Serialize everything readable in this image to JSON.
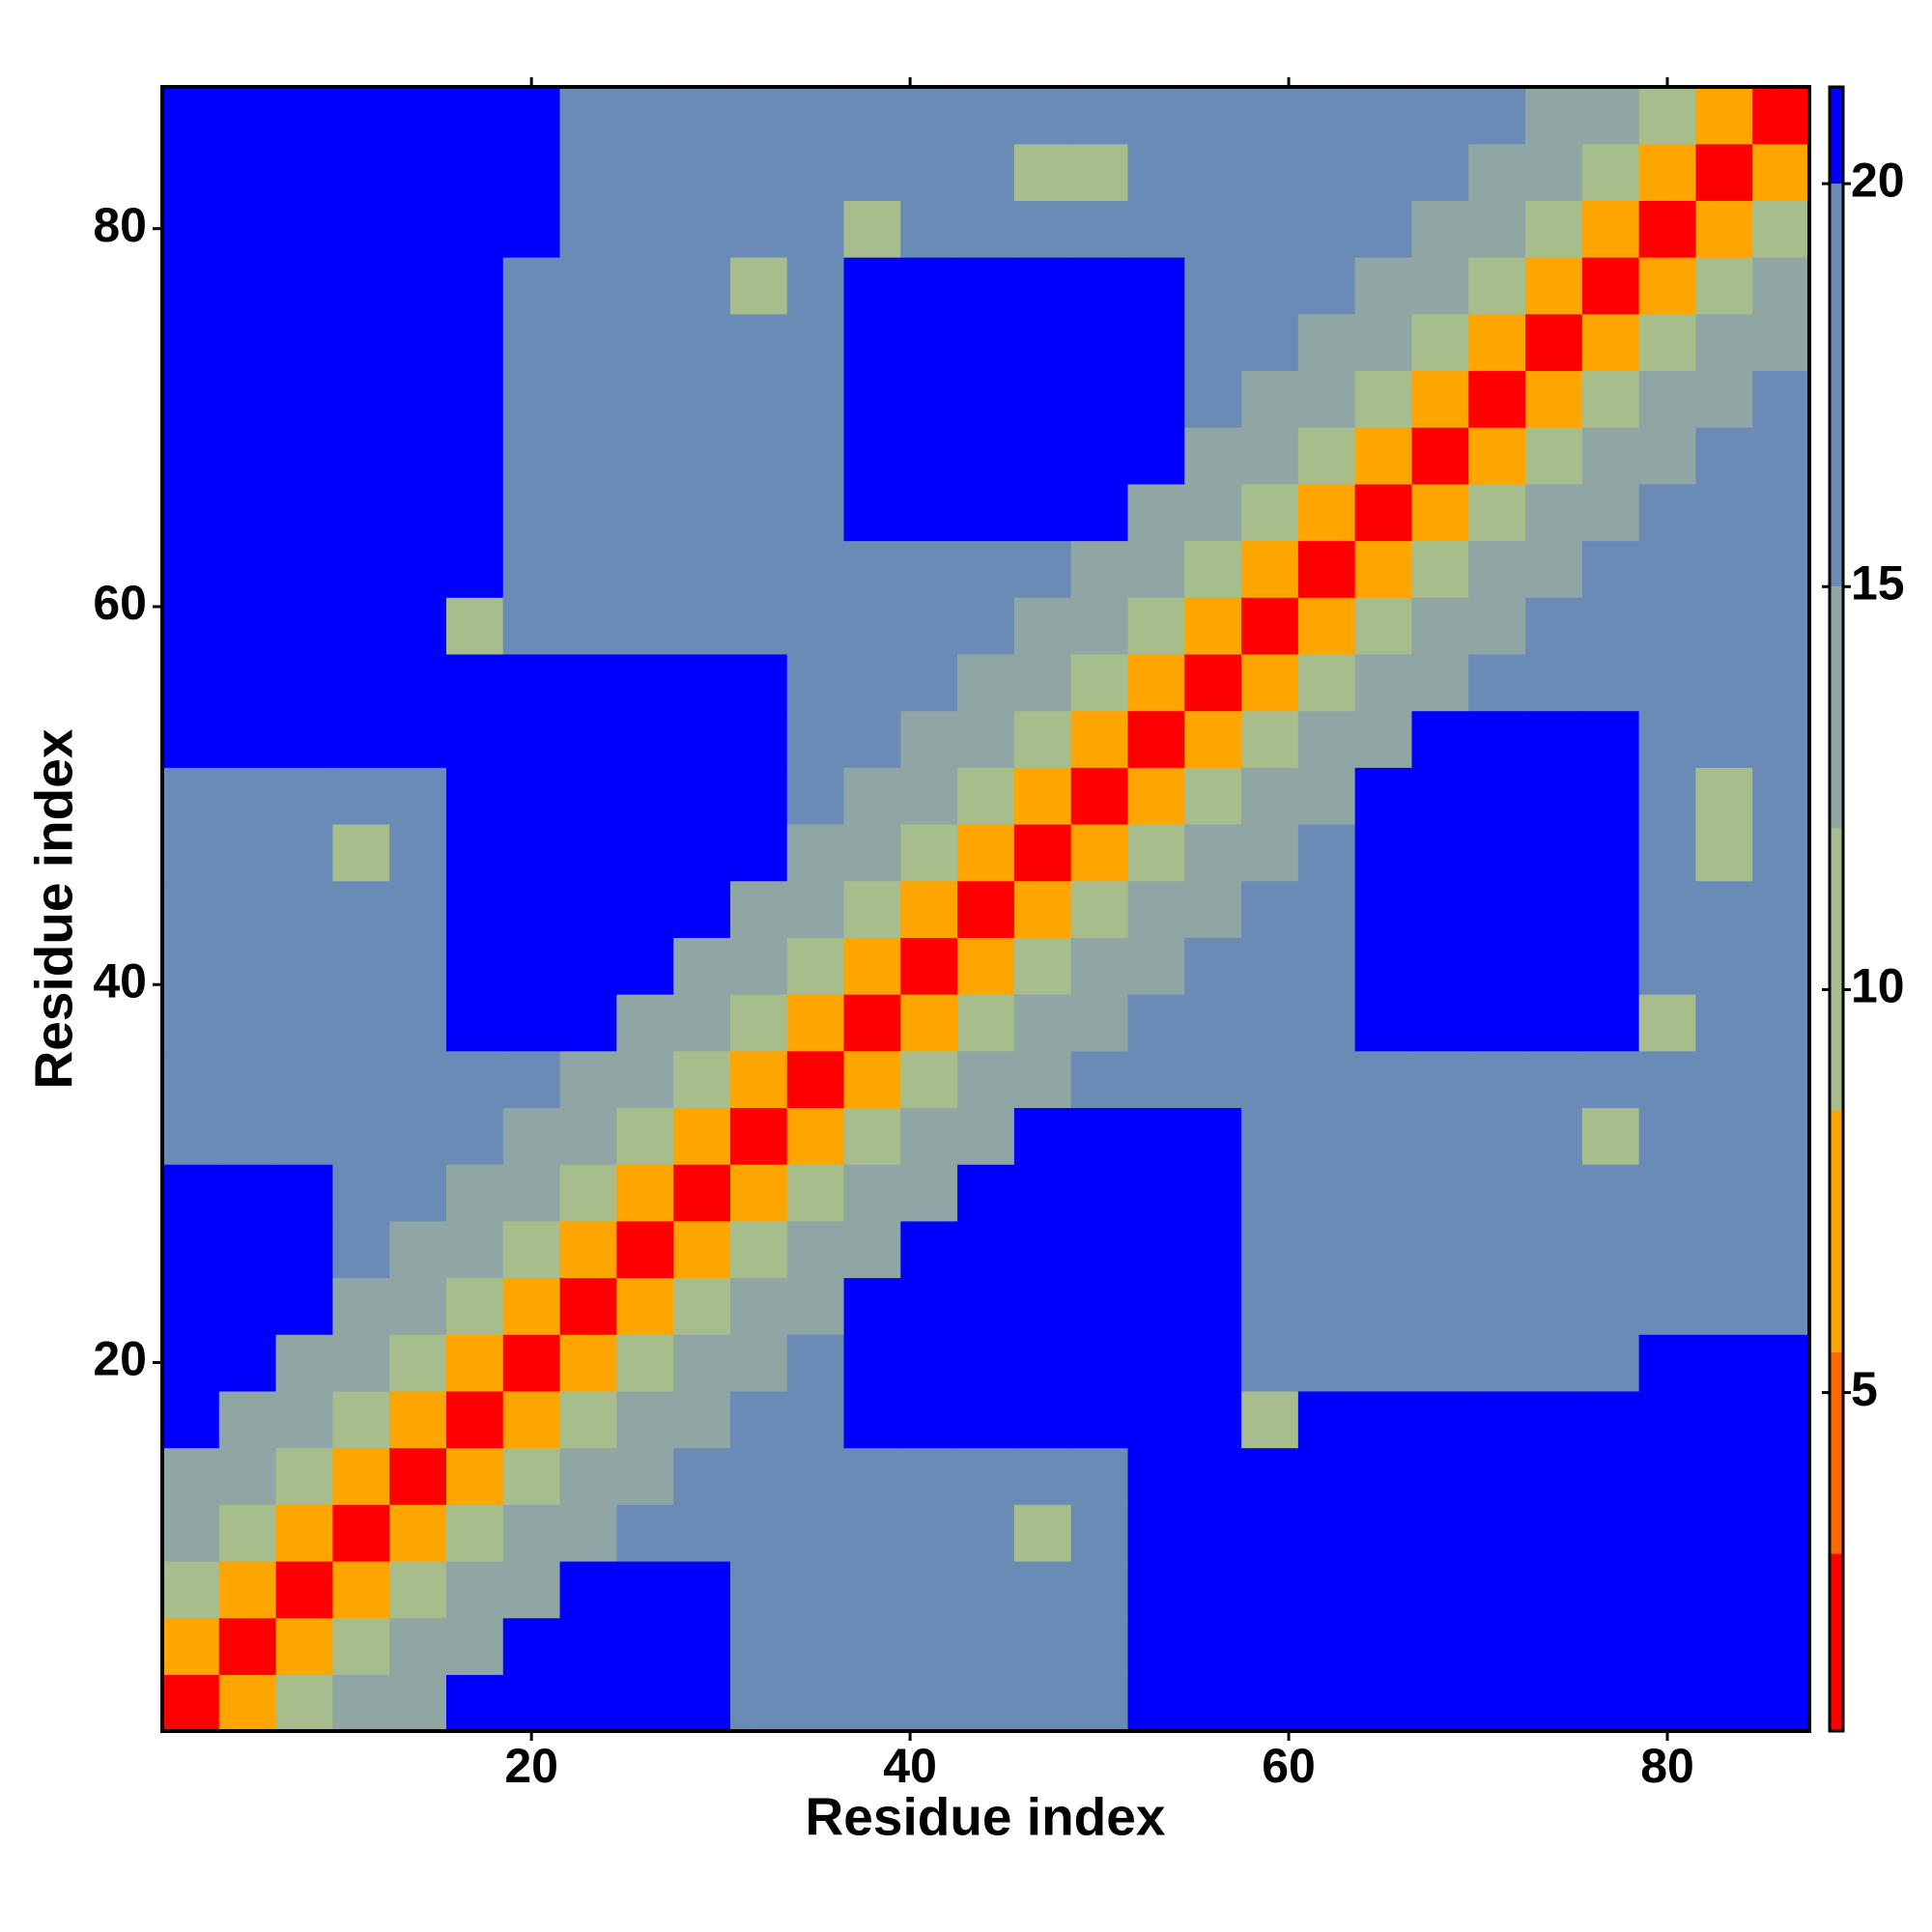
{
  "chart_data": {
    "type": "heatmap",
    "xlabel": "Residue index",
    "ylabel": "Residue index",
    "x": [
      2,
      5,
      8,
      11,
      14,
      17,
      20,
      23,
      26,
      29,
      32,
      35,
      38,
      41,
      44,
      47,
      50,
      53,
      56,
      59,
      62,
      65,
      68,
      71,
      74,
      77,
      80,
      83,
      86
    ],
    "y": [
      2,
      5,
      8,
      11,
      14,
      17,
      20,
      23,
      26,
      29,
      32,
      35,
      38,
      41,
      44,
      47,
      50,
      53,
      56,
      59,
      62,
      65,
      68,
      71,
      74,
      77,
      80,
      83,
      86
    ],
    "z": [
      [
        2,
        6,
        10,
        13,
        15,
        21,
        21,
        21,
        21,
        21,
        16,
        16,
        16,
        16,
        16,
        16,
        16,
        21,
        21,
        21,
        21,
        21,
        21,
        21,
        21,
        21,
        21,
        21,
        21
      ],
      [
        6,
        2,
        6,
        10,
        13,
        15,
        21,
        21,
        21,
        21,
        16,
        16,
        16,
        16,
        16,
        16,
        16,
        21,
        21,
        21,
        21,
        21,
        21,
        21,
        21,
        21,
        21,
        21,
        21
      ],
      [
        10,
        6,
        2,
        6,
        10,
        13,
        15,
        21,
        21,
        21,
        16,
        16,
        16,
        16,
        16,
        16,
        16,
        21,
        21,
        21,
        21,
        21,
        21,
        21,
        21,
        21,
        21,
        21,
        21
      ],
      [
        13,
        10,
        6,
        2,
        6,
        10,
        13,
        15,
        16,
        16,
        16,
        16,
        16,
        16,
        16,
        9,
        16,
        21,
        21,
        21,
        21,
        21,
        21,
        21,
        21,
        21,
        21,
        21,
        21
      ],
      [
        15,
        13,
        10,
        6,
        2,
        6,
        10,
        13,
        15,
        16,
        16,
        16,
        16,
        16,
        16,
        16,
        16,
        21,
        21,
        21,
        21,
        21,
        21,
        21,
        21,
        21,
        21,
        21,
        21
      ],
      [
        21,
        15,
        13,
        10,
        6,
        2,
        6,
        10,
        13,
        15,
        16,
        16,
        21,
        21,
        21,
        21,
        21,
        21,
        21,
        9,
        21,
        21,
        21,
        21,
        21,
        21,
        21,
        21,
        21
      ],
      [
        21,
        21,
        15,
        13,
        10,
        6,
        2,
        6,
        10,
        13,
        15,
        16,
        21,
        21,
        21,
        21,
        21,
        21,
        21,
        16,
        16,
        16,
        16,
        16,
        16,
        16,
        21,
        21,
        21
      ],
      [
        21,
        21,
        21,
        15,
        13,
        10,
        6,
        2,
        6,
        10,
        13,
        15,
        21,
        21,
        21,
        21,
        21,
        21,
        21,
        16,
        16,
        16,
        16,
        16,
        16,
        16,
        18,
        18,
        18
      ],
      [
        21,
        21,
        21,
        16,
        15,
        13,
        10,
        6,
        2,
        6,
        10,
        13,
        15,
        21,
        21,
        21,
        21,
        21,
        21,
        16,
        16,
        16,
        16,
        16,
        16,
        16,
        18,
        18,
        18
      ],
      [
        21,
        21,
        21,
        16,
        16,
        15,
        13,
        10,
        6,
        2,
        6,
        10,
        13,
        15,
        21,
        21,
        21,
        21,
        21,
        16,
        16,
        16,
        16,
        16,
        16,
        16,
        18,
        18,
        18
      ],
      [
        16,
        16,
        16,
        16,
        16,
        16,
        15,
        13,
        10,
        6,
        2,
        6,
        10,
        13,
        15,
        21,
        21,
        21,
        21,
        16,
        16,
        16,
        16,
        16,
        16,
        9,
        18,
        18,
        18
      ],
      [
        16,
        16,
        16,
        16,
        16,
        16,
        16,
        15,
        13,
        10,
        6,
        2,
        6,
        10,
        13,
        15,
        16,
        16,
        16,
        16,
        16,
        16,
        16,
        16,
        16,
        16,
        16,
        16,
        16
      ],
      [
        16,
        16,
        16,
        16,
        16,
        21,
        21,
        21,
        15,
        13,
        10,
        6,
        2,
        6,
        10,
        13,
        15,
        16,
        16,
        16,
        16,
        21,
        21,
        21,
        21,
        21,
        9,
        16,
        16
      ],
      [
        16,
        16,
        16,
        16,
        16,
        21,
        21,
        21,
        21,
        15,
        13,
        10,
        6,
        2,
        6,
        10,
        13,
        15,
        16,
        16,
        16,
        21,
        21,
        21,
        21,
        21,
        16,
        16,
        16
      ],
      [
        16,
        16,
        16,
        16,
        16,
        21,
        21,
        21,
        21,
        21,
        15,
        13,
        10,
        6,
        2,
        6,
        10,
        13,
        15,
        16,
        16,
        21,
        21,
        21,
        21,
        21,
        16,
        16,
        16
      ],
      [
        16,
        16,
        16,
        9,
        16,
        21,
        21,
        21,
        21,
        21,
        21,
        15,
        13,
        10,
        6,
        2,
        6,
        10,
        13,
        15,
        16,
        21,
        21,
        21,
        21,
        21,
        16,
        9,
        16
      ],
      [
        16,
        16,
        16,
        16,
        16,
        21,
        21,
        21,
        21,
        21,
        21,
        16,
        15,
        13,
        10,
        6,
        2,
        6,
        10,
        13,
        15,
        21,
        21,
        21,
        21,
        21,
        16,
        10,
        16
      ],
      [
        21,
        21,
        21,
        21,
        21,
        21,
        21,
        21,
        21,
        21,
        21,
        16,
        16,
        15,
        13,
        10,
        6,
        2,
        6,
        10,
        13,
        15,
        21,
        21,
        21,
        21,
        16,
        16,
        16
      ],
      [
        21,
        21,
        21,
        21,
        21,
        21,
        21,
        21,
        21,
        21,
        21,
        16,
        16,
        16,
        15,
        13,
        10,
        6,
        2,
        6,
        10,
        13,
        15,
        16,
        16,
        16,
        16,
        16,
        16
      ],
      [
        21,
        21,
        21,
        21,
        21,
        9,
        16,
        16,
        16,
        16,
        16,
        16,
        16,
        16,
        16,
        15,
        13,
        10,
        6,
        2,
        6,
        10,
        13,
        15,
        16,
        16,
        16,
        16,
        16
      ],
      [
        21,
        21,
        21,
        21,
        21,
        21,
        16,
        16,
        16,
        16,
        16,
        16,
        16,
        16,
        16,
        16,
        15,
        13,
        10,
        6,
        2,
        6,
        10,
        13,
        15,
        16,
        16,
        16,
        16
      ],
      [
        21,
        21,
        21,
        21,
        21,
        21,
        16,
        16,
        16,
        16,
        16,
        16,
        21,
        21,
        21,
        21,
        21,
        15,
        13,
        10,
        6,
        2,
        6,
        10,
        13,
        15,
        16,
        16,
        16
      ],
      [
        21,
        21,
        21,
        21,
        21,
        21,
        16,
        16,
        16,
        16,
        16,
        16,
        21,
        21,
        21,
        21,
        21,
        21,
        15,
        13,
        10,
        6,
        2,
        6,
        10,
        13,
        15,
        16,
        16
      ],
      [
        21,
        21,
        21,
        21,
        21,
        21,
        16,
        16,
        16,
        16,
        16,
        16,
        21,
        21,
        21,
        21,
        21,
        21,
        16,
        15,
        13,
        10,
        6,
        2,
        6,
        10,
        13,
        15,
        16
      ],
      [
        21,
        21,
        21,
        21,
        21,
        21,
        16,
        16,
        16,
        16,
        16,
        16,
        21,
        21,
        21,
        21,
        21,
        21,
        16,
        16,
        15,
        13,
        10,
        6,
        2,
        6,
        10,
        13,
        15
      ],
      [
        21,
        21,
        21,
        21,
        21,
        21,
        16,
        16,
        16,
        16,
        9,
        16,
        21,
        21,
        21,
        21,
        21,
        21,
        16,
        16,
        16,
        15,
        13,
        10,
        6,
        2,
        6,
        10,
        13
      ],
      [
        21,
        21,
        21,
        21,
        21,
        21,
        21,
        18,
        18,
        18,
        18,
        16,
        9,
        16,
        16,
        16,
        16,
        16,
        16,
        16,
        16,
        16,
        15,
        13,
        10,
        6,
        2,
        6,
        10
      ],
      [
        21,
        21,
        21,
        21,
        21,
        21,
        21,
        18,
        18,
        18,
        18,
        16,
        16,
        16,
        16,
        9,
        10,
        16,
        16,
        16,
        16,
        16,
        16,
        15,
        13,
        10,
        6,
        2,
        6
      ],
      [
        21,
        21,
        21,
        21,
        21,
        21,
        21,
        18,
        18,
        18,
        18,
        16,
        16,
        16,
        16,
        16,
        16,
        16,
        16,
        16,
        16,
        16,
        16,
        16,
        15,
        13,
        10,
        6,
        2
      ]
    ],
    "cell": 3,
    "xlim": [
      0.5,
      87.5
    ],
    "ylim": [
      0.5,
      87.5
    ],
    "xticks": [
      20,
      40,
      60,
      80
    ],
    "yticks": [
      20,
      40,
      60,
      80
    ],
    "clim": [
      0.8,
      21.2
    ],
    "cticks": [
      5,
      10,
      15,
      20
    ],
    "colorscale": [
      {
        "max": 3,
        "color": "#ff0000"
      },
      {
        "max": 5.5,
        "color": "#ff6a00"
      },
      {
        "max": 8.5,
        "color": "#ffa500"
      },
      {
        "max": 12,
        "color": "#a8bd8c"
      },
      {
        "max": 15,
        "color": "#8fa6a4"
      },
      {
        "max": 20,
        "color": "#6a8bb5"
      },
      {
        "max": 21.2,
        "color": "#0000ff"
      }
    ]
  }
}
